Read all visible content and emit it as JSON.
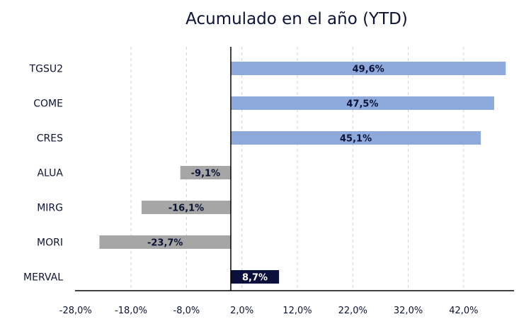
{
  "chart_data": {
    "type": "bar",
    "orientation": "horizontal",
    "title": "Acumulado en el año (YTD)",
    "categories": [
      "TGSU2",
      "COME",
      "CRES",
      "ALUA",
      "MIRG",
      "MORI",
      "MERVAL"
    ],
    "values": [
      49.6,
      47.5,
      45.1,
      -9.1,
      -16.1,
      -23.7,
      8.7
    ],
    "value_labels": [
      "49,6%",
      "47,5%",
      "45,1%",
      "-9,1%",
      "-16,1%",
      "-23,7%",
      "8,7%"
    ],
    "xlim": [
      -28.0,
      50.0
    ],
    "x_ticks": [
      -28,
      -18,
      -8,
      2,
      12,
      22,
      32,
      42
    ],
    "x_tick_labels": [
      "-28,0%",
      "-18,0%",
      "-8,0%",
      "2,0%",
      "12,0%",
      "22,0%",
      "32,0%",
      "42,0%"
    ],
    "grid": "vertical dashed",
    "colors": {
      "positive": "#8ea9db",
      "negative": "#a6a6a6",
      "benchmark": "#0b0f3c",
      "label_dark": "#0b1336",
      "label_light": "#ffffff",
      "grid": "#d0d0d0",
      "axis": "#000000"
    },
    "highlight_category": "MERVAL"
  }
}
